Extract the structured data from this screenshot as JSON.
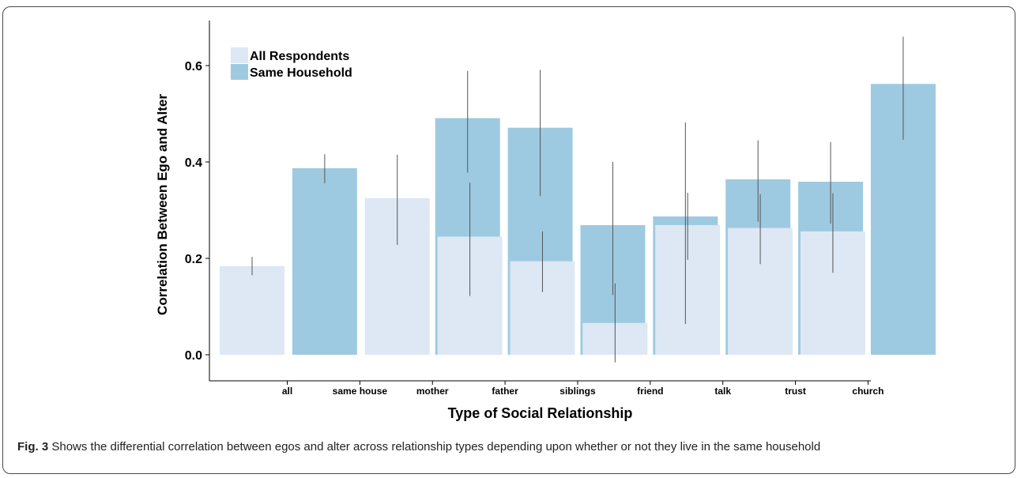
{
  "chart_data": {
    "type": "bar",
    "xlabel": "Type of Social Relationship",
    "ylabel": "Correlation Between Ego and Alter",
    "ylim": [
      0.0,
      0.69
    ],
    "yticks": [
      "0.0",
      "0.2",
      "0.4",
      "0.6"
    ],
    "grid": false,
    "legend_position": "top-left",
    "categories": [
      "all",
      "same house",
      "mother",
      "father",
      "siblings",
      "friend",
      "talk",
      "trust",
      "church"
    ],
    "series": [
      {
        "name": "All Respondents",
        "color": "#dde8f4",
        "values": [
          0.184,
          null,
          0.325,
          0.245,
          0.194,
          0.066,
          0.269,
          0.263,
          0.256
        ],
        "ci_low": [
          0.165,
          null,
          0.228,
          0.122,
          0.13,
          -0.016,
          0.197,
          0.188,
          0.17
        ],
        "ci_high": [
          0.203,
          null,
          0.415,
          0.357,
          0.256,
          0.148,
          0.336,
          0.333,
          0.335
        ]
      },
      {
        "name": "Same Household",
        "color": "#9ecae1",
        "values": [
          null,
          0.387,
          0.491,
          0.471,
          0.269,
          0.287,
          0.364,
          0.359,
          0.562
        ],
        "ci_low": [
          null,
          0.356,
          0.378,
          0.329,
          0.124,
          0.064,
          0.276,
          0.272,
          0.446
        ],
        "ci_high": [
          null,
          0.416,
          0.589,
          0.591,
          0.4,
          0.482,
          0.445,
          0.441,
          0.66
        ]
      }
    ]
  },
  "caption": {
    "label": "Fig. 3",
    "text": "Shows the differential correlation between egos and alter across relationship types depending upon whether or not they live in the same household"
  }
}
